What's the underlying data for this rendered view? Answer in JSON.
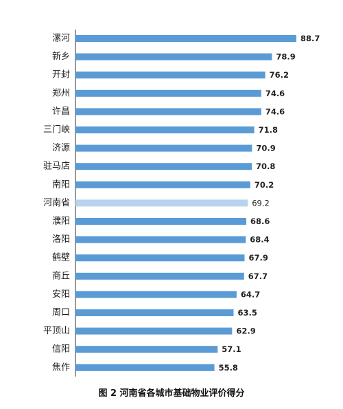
{
  "caption": "图 2 河南省各城市基础物业评价得分",
  "chart_data": {
    "type": "bar",
    "orientation": "horizontal",
    "categories": [
      "漯河",
      "新乡",
      "开封",
      "郑州",
      "许昌",
      "三门峡",
      "济源",
      "驻马店",
      "南阳",
      "河南省",
      "濮阳",
      "洛阳",
      "鹤壁",
      "商丘",
      "安阳",
      "周口",
      "平顶山",
      "信阳",
      "焦作"
    ],
    "values": [
      88.7,
      78.9,
      76.2,
      74.6,
      74.6,
      71.8,
      70.9,
      70.8,
      70.2,
      69.2,
      68.6,
      68.4,
      67.9,
      67.7,
      64.7,
      63.5,
      62.9,
      57.1,
      55.8
    ],
    "value_labels": [
      "88.7",
      "78.9",
      "76.2",
      "74.6",
      "74.6",
      "71.8",
      "70.9",
      "70.8",
      "70.2",
      "69.2",
      "68.6",
      "68.4",
      "67.9",
      "67.7",
      "64.7",
      "63.5",
      "62.9",
      "57.1",
      "55.8"
    ],
    "highlight_category": "河南省",
    "xlim": [
      0,
      88.7
    ],
    "grid": false,
    "colors": {
      "bar": "#5b9bd5",
      "highlight": "#b8d3ee",
      "axis": "#333333"
    }
  }
}
